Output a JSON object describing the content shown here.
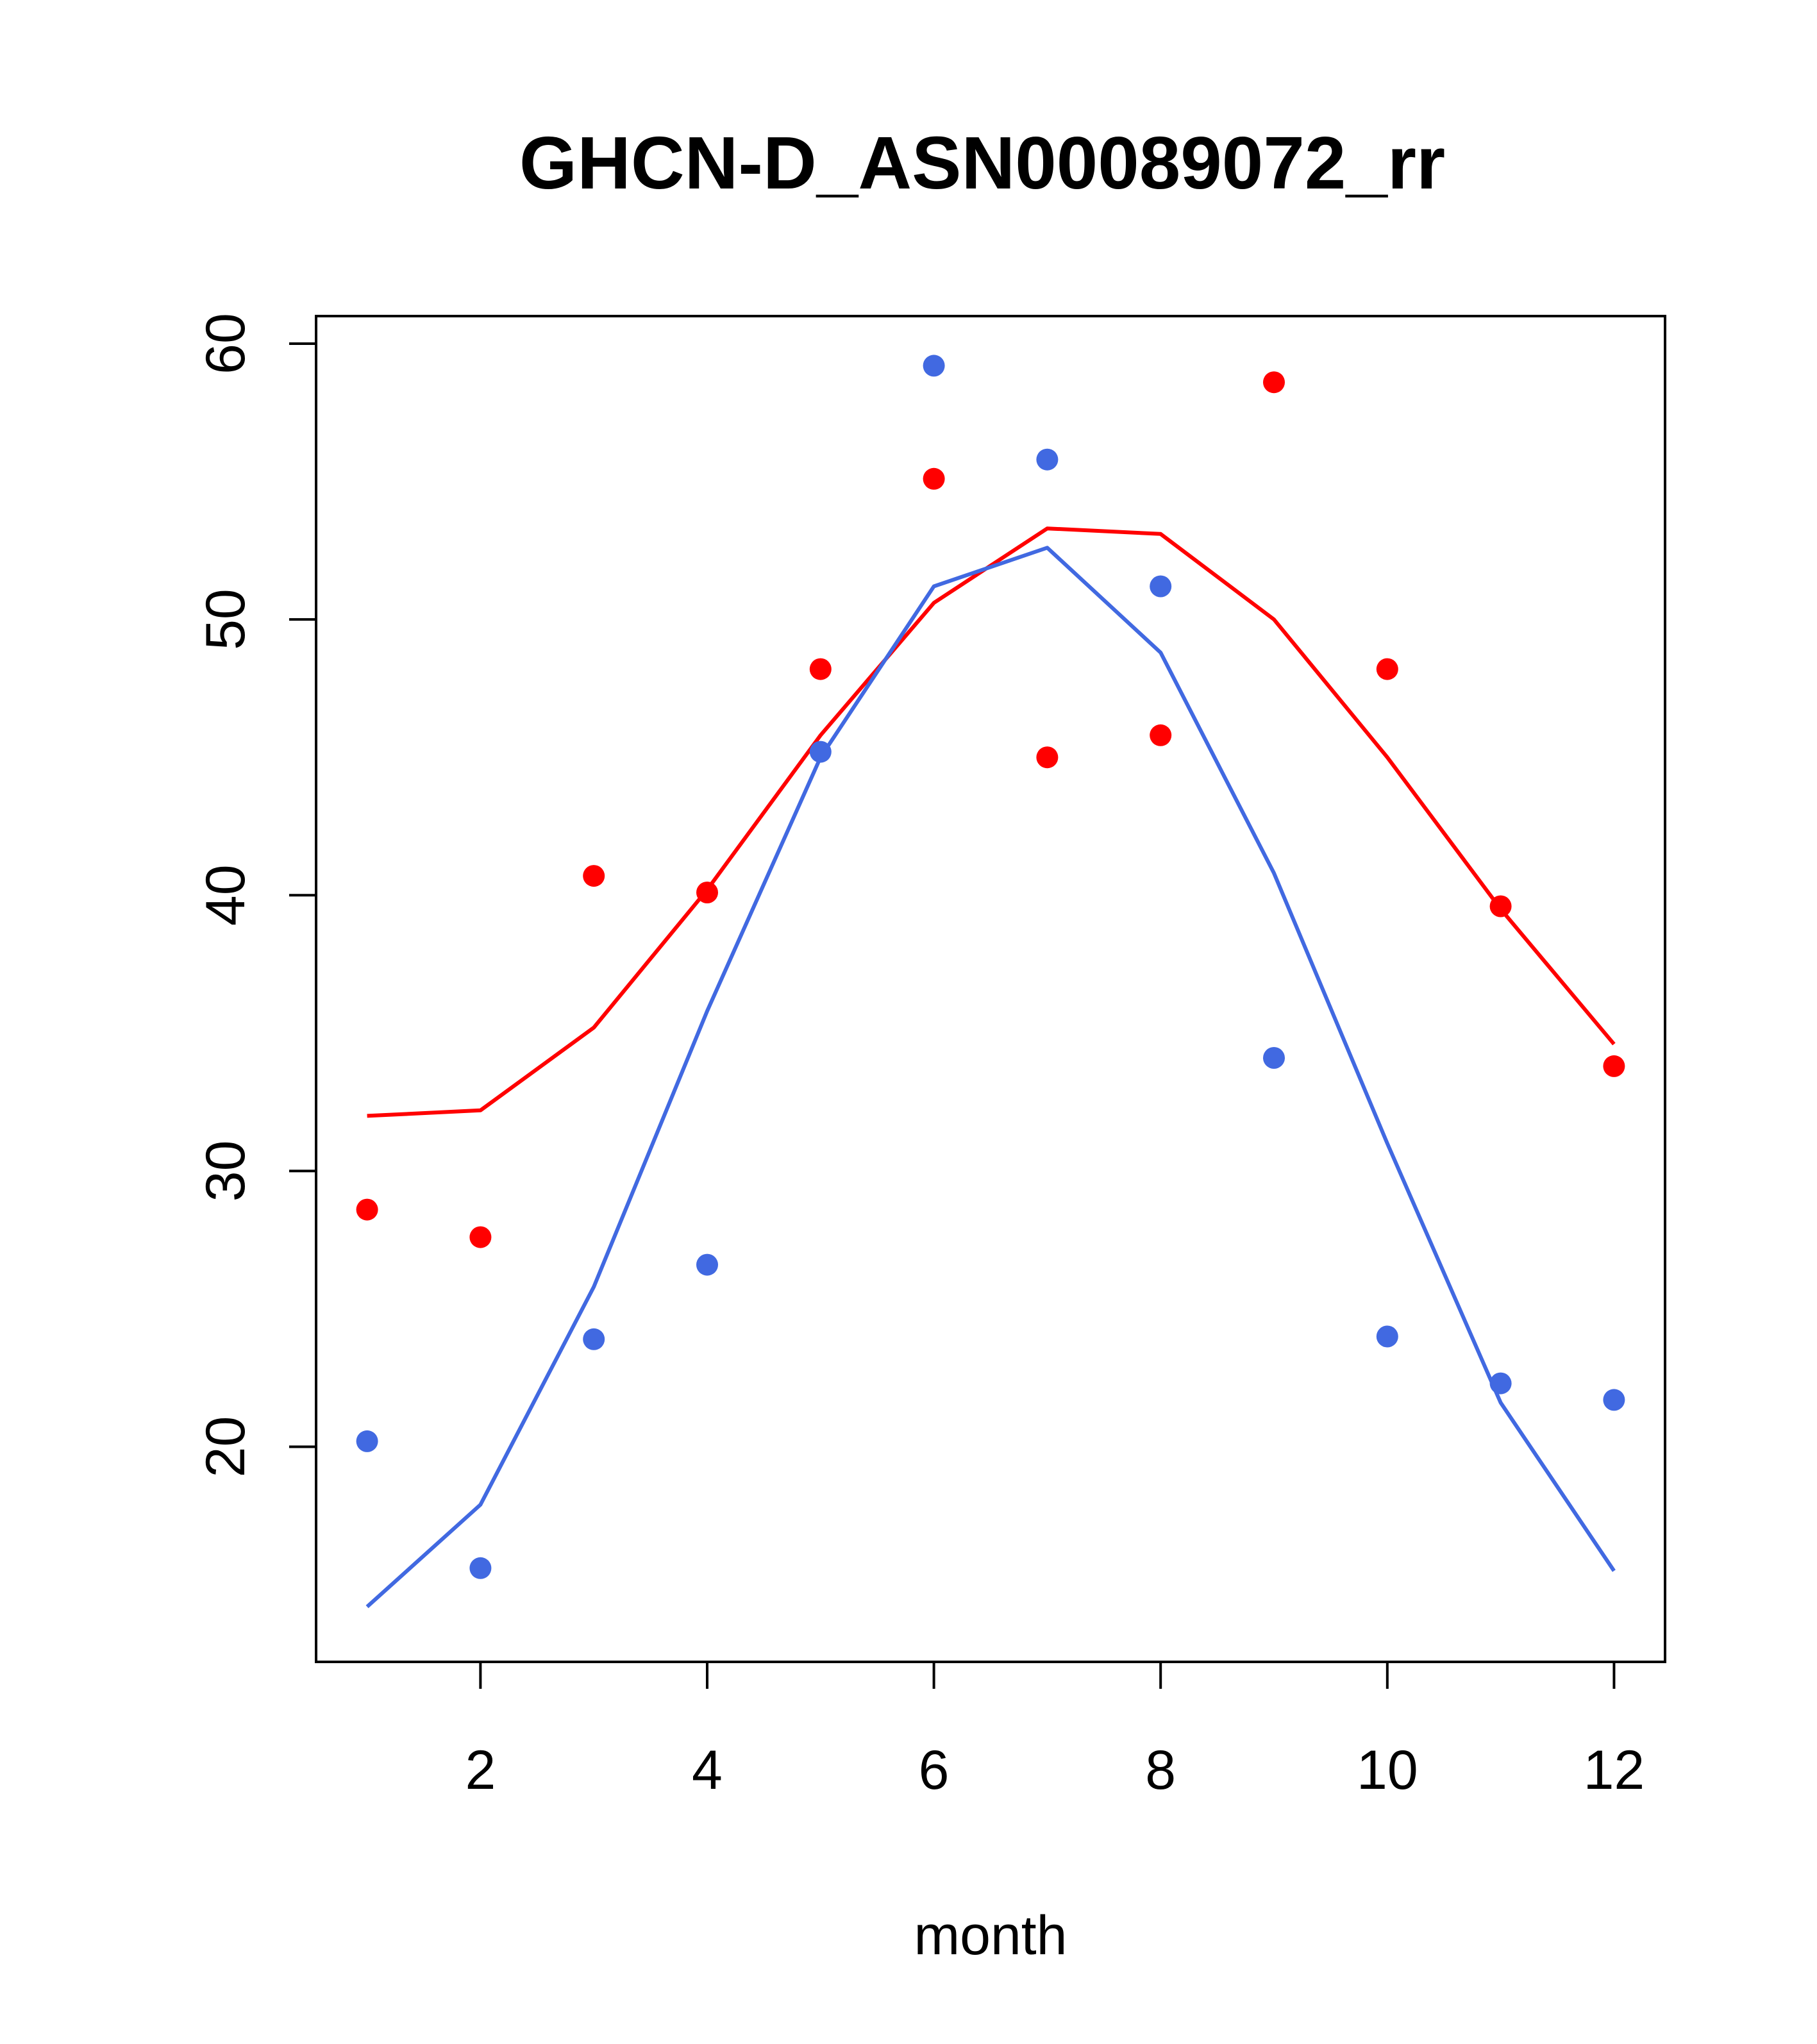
{
  "chart_data": {
    "type": "scatter",
    "title": "GHCN-D_ASN00089072_rr",
    "xlabel": "month",
    "ylabel": "",
    "xlim": [
      0.55,
      12.45
    ],
    "ylim": [
      12.2,
      61.0
    ],
    "x_ticks": [
      2,
      4,
      6,
      8,
      10,
      12
    ],
    "y_ticks": [
      20,
      30,
      40,
      50,
      60
    ],
    "grid": false,
    "legend": "none",
    "x": [
      1,
      2,
      3,
      4,
      5,
      6,
      7,
      8,
      9,
      10,
      11,
      12
    ],
    "series": [
      {
        "color": "#ff0000",
        "points": [
          28.6,
          27.6,
          40.7,
          40.1,
          48.2,
          55.1,
          45.0,
          45.8,
          58.6,
          48.2,
          39.6,
          33.8
        ],
        "line": [
          32.0,
          32.2,
          35.2,
          40.2,
          45.8,
          50.6,
          53.3,
          53.1,
          50.0,
          45.0,
          39.5,
          34.6
        ]
      },
      {
        "color": "#4169e1",
        "points": [
          20.2,
          15.6,
          23.9,
          26.6,
          45.2,
          59.2,
          55.8,
          51.2,
          34.1,
          24.0,
          22.3,
          21.7
        ],
        "line": [
          14.2,
          17.9,
          25.8,
          35.8,
          45.0,
          51.2,
          52.6,
          48.8,
          40.8,
          31.0,
          21.6,
          15.5
        ]
      }
    ]
  }
}
